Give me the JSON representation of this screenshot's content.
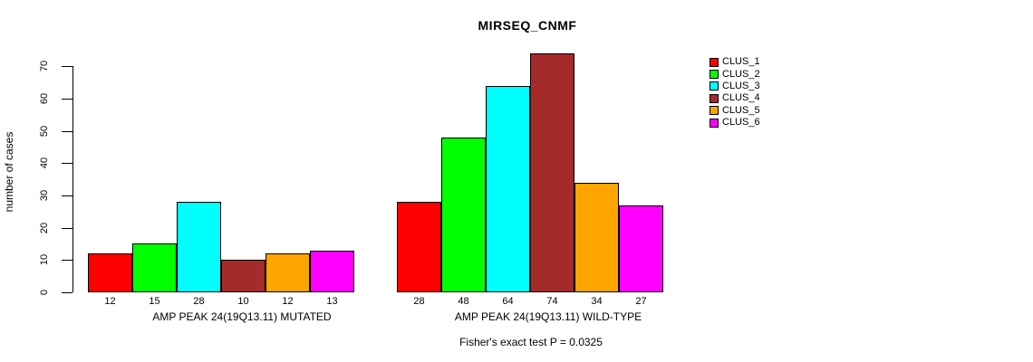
{
  "chart_data": {
    "type": "bar",
    "title": "MIRSEQ_CNMF",
    "ylabel": "number of cases",
    "ylim": [
      0,
      70
    ],
    "yticks": [
      0,
      10,
      20,
      30,
      40,
      50,
      60,
      70
    ],
    "grid": false,
    "legend_position": "right",
    "categories": [
      "AMP PEAK 24(19Q13.11) MUTATED",
      "AMP PEAK 24(19Q13.11) WILD-TYPE"
    ],
    "series": [
      {
        "name": "CLUS_1",
        "color": "#ff0000",
        "values": [
          12,
          28
        ]
      },
      {
        "name": "CLUS_2",
        "color": "#00ff00",
        "values": [
          15,
          48
        ]
      },
      {
        "name": "CLUS_3",
        "color": "#00ffff",
        "values": [
          28,
          64
        ]
      },
      {
        "name": "CLUS_4",
        "color": "#a52a2a",
        "values": [
          10,
          74
        ]
      },
      {
        "name": "CLUS_5",
        "color": "#ffa500",
        "values": [
          12,
          34
        ]
      },
      {
        "name": "CLUS_6",
        "color": "#ff00ff",
        "values": [
          13,
          27
        ]
      }
    ],
    "bar_value_labels": true,
    "annotation": "Fisher's exact test P = 0.0325"
  }
}
